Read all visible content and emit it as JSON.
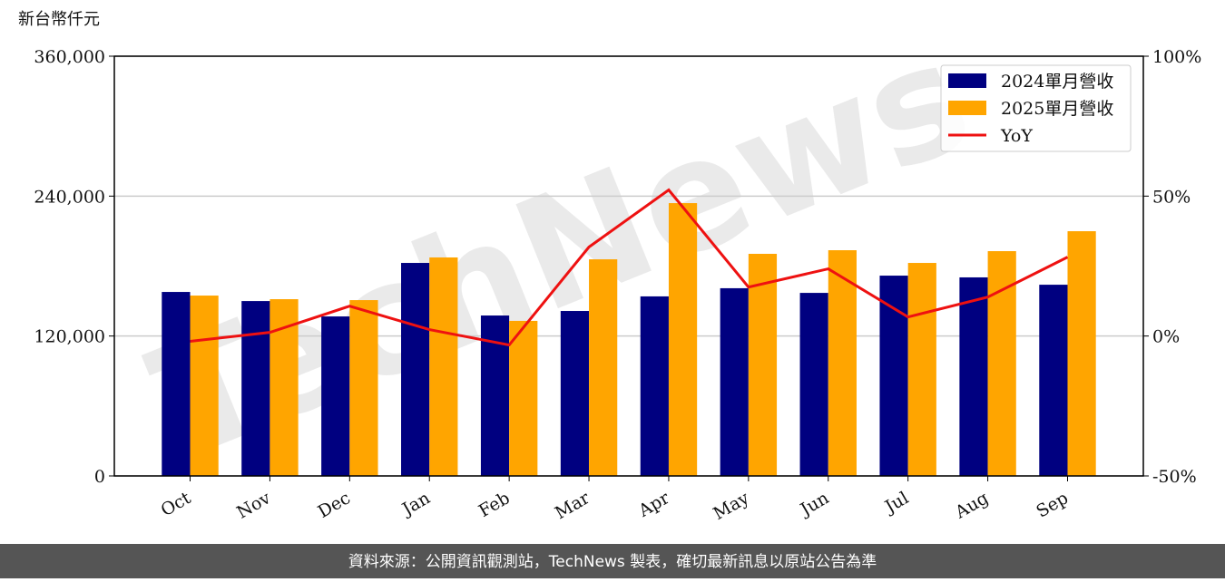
{
  "chart_data": {
    "type": "bar_line",
    "y_label": "新台幣仟元",
    "watermark": "TechNews",
    "footer": "資料來源：公開資訊觀測站，TechNews 製表，確切最新訊息以原站公告為準",
    "categories": [
      "Oct",
      "Nov",
      "Dec",
      "Jan",
      "Feb",
      "Mar",
      "Apr",
      "May",
      "Jun",
      "Jul",
      "Aug",
      "Sep"
    ],
    "series": [
      {
        "name": "2024單月營收",
        "color": "#000080",
        "values": [
          157800,
          150000,
          136800,
          182700,
          137600,
          141500,
          154000,
          161000,
          157000,
          171800,
          170300,
          164000
        ]
      },
      {
        "name": "2025單月營收",
        "color": "#ffa500",
        "values": [
          154700,
          151600,
          150800,
          187400,
          133000,
          185800,
          234000,
          190500,
          193600,
          182700,
          192800,
          209900
        ]
      },
      {
        "name": "YoY",
        "color": "#ee1111",
        "axis": "y2",
        "values": [
          -1.9,
          1.3,
          10.7,
          2.3,
          -3.2,
          31.8,
          52.2,
          17.5,
          24.0,
          6.8,
          13.9,
          28.2
        ]
      }
    ],
    "ylim": [
      0,
      360000
    ],
    "yticks": [
      0,
      {
        "value": 120000,
        "label": "120,000"
      },
      {
        "value": 240000,
        "label": "240,000"
      },
      {
        "value": 360000,
        "label": "360,000"
      }
    ],
    "y2lim": [
      -50,
      100
    ],
    "y2ticks": [
      {
        "value": -50,
        "label": "-50%"
      },
      {
        "value": 0,
        "label": "0%"
      },
      {
        "value": 50,
        "label": "50%"
      },
      {
        "value": 100,
        "label": "100%"
      }
    ],
    "grid": true,
    "legend": "upper right"
  }
}
